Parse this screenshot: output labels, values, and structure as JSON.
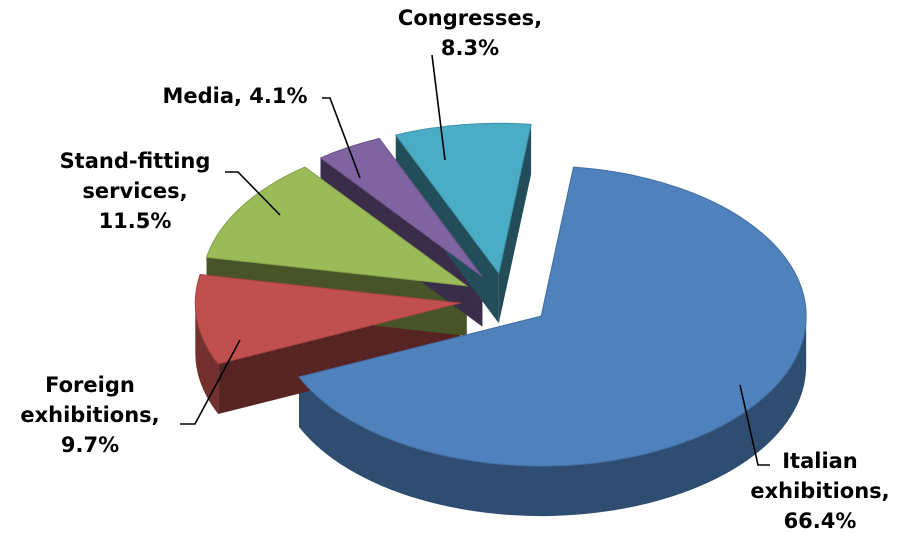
{
  "chart_data": {
    "type": "pie",
    "style": "3d-exploded",
    "slices": [
      {
        "name": "Italian exhibitions",
        "value": 66.4,
        "color": "#4f81bd",
        "label_lines": [
          "Italian",
          "exhibitions,",
          "66.4%"
        ]
      },
      {
        "name": "Foreign exhibitions",
        "value": 9.7,
        "color": "#c0504d",
        "label_lines": [
          "Foreign",
          "exhibitions,",
          "9.7%"
        ]
      },
      {
        "name": "Stand-fitting services",
        "value": 11.5,
        "color": "#9bbb59",
        "label_lines": [
          "Stand-fitting",
          "services,",
          "11.5%"
        ]
      },
      {
        "name": "Media",
        "value": 4.1,
        "color": "#8064a2",
        "label_lines": [
          "Media, 4.1%"
        ]
      },
      {
        "name": "Congresses",
        "value": 8.3,
        "color": "#4bacc6",
        "label_lines": [
          "Congresses,",
          "8.3%"
        ]
      }
    ]
  }
}
